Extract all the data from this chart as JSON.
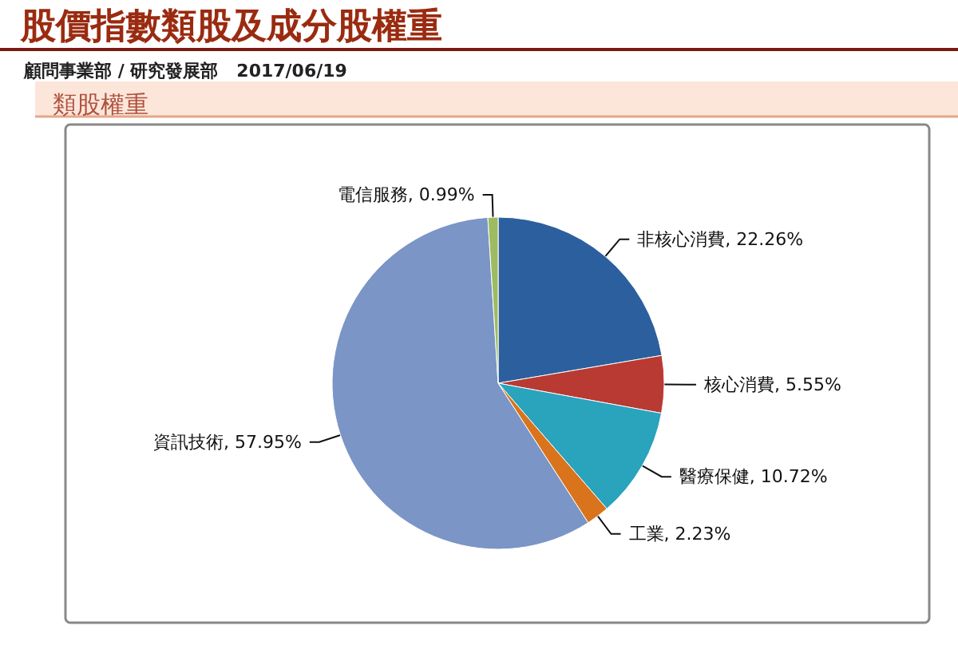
{
  "chart_data": {
    "type": "pie",
    "title": "股價指數類股及成分股權重",
    "subtitle": "顧問事業部 / 研究發展部   2017/06/19",
    "annotations": [
      "類股權重"
    ],
    "categories": [
      "非核心消費",
      "核心消費",
      "醫療保健",
      "工業",
      "資訊技術",
      "電信服務"
    ],
    "values": [
      22.26,
      5.55,
      10.72,
      2.23,
      57.95,
      0.99
    ],
    "value_labels": [
      "22.26%",
      "5.55%",
      "10.72%",
      "2.23%",
      "57.95%",
      "0.99%"
    ],
    "colors": [
      "#2c5f9e",
      "#b83a32",
      "#2aa3bd",
      "#d9741c",
      "#7a95c6",
      "#9dbb61"
    ]
  }
}
